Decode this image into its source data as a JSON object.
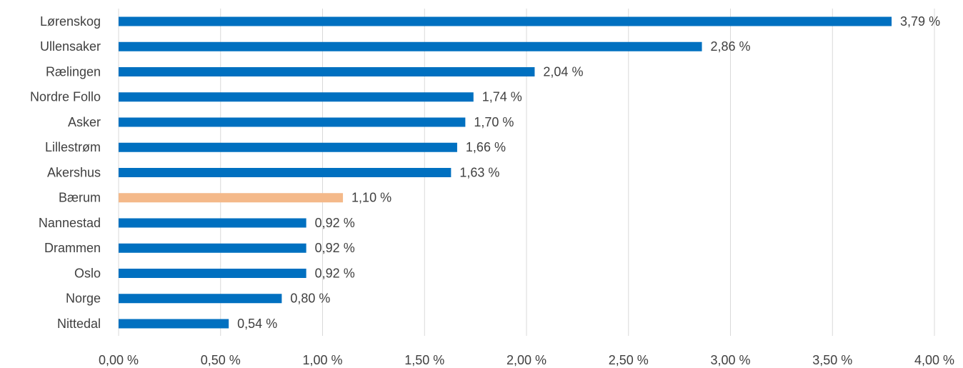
{
  "chart_data": {
    "type": "bar",
    "orientation": "horizontal",
    "categories": [
      "Lørenskog",
      "Ullensaker",
      "Rælingen",
      "Nordre Follo",
      "Asker",
      "Lillestrøm",
      "Akershus",
      "Bærum",
      "Nannestad",
      "Drammen",
      "Oslo",
      "Norge",
      "Nittedal"
    ],
    "values": [
      3.79,
      2.86,
      2.04,
      1.74,
      1.7,
      1.66,
      1.63,
      1.1,
      0.92,
      0.92,
      0.92,
      0.8,
      0.54
    ],
    "value_labels": [
      "3,79 %",
      "2,86 %",
      "2,04 %",
      "1,74 %",
      "1,70 %",
      "1,66 %",
      "1,63 %",
      "1,10 %",
      "0,92 %",
      "0,92 %",
      "0,92 %",
      "0,80 %",
      "0,54 %"
    ],
    "colors": [
      "#0070c0",
      "#0070c0",
      "#0070c0",
      "#0070c0",
      "#0070c0",
      "#0070c0",
      "#0070c0",
      "#f4b98a",
      "#0070c0",
      "#0070c0",
      "#0070c0",
      "#0070c0",
      "#0070c0"
    ],
    "xlim": [
      0,
      4
    ],
    "xticks": [
      {
        "value": 0,
        "label": "0,00 %"
      },
      {
        "value": 0.5,
        "label": "0,50 %"
      },
      {
        "value": 1,
        "label": "1,00 %"
      },
      {
        "value": 1.5,
        "label": "1,50 %"
      },
      {
        "value": 2,
        "label": "2,00 %"
      },
      {
        "value": 2.5,
        "label": "2,50 %"
      },
      {
        "value": 3,
        "label": "3,00 %"
      },
      {
        "value": 3.5,
        "label": "3,50 %"
      },
      {
        "value": 4,
        "label": "4,00 %"
      }
    ],
    "grid": true
  }
}
